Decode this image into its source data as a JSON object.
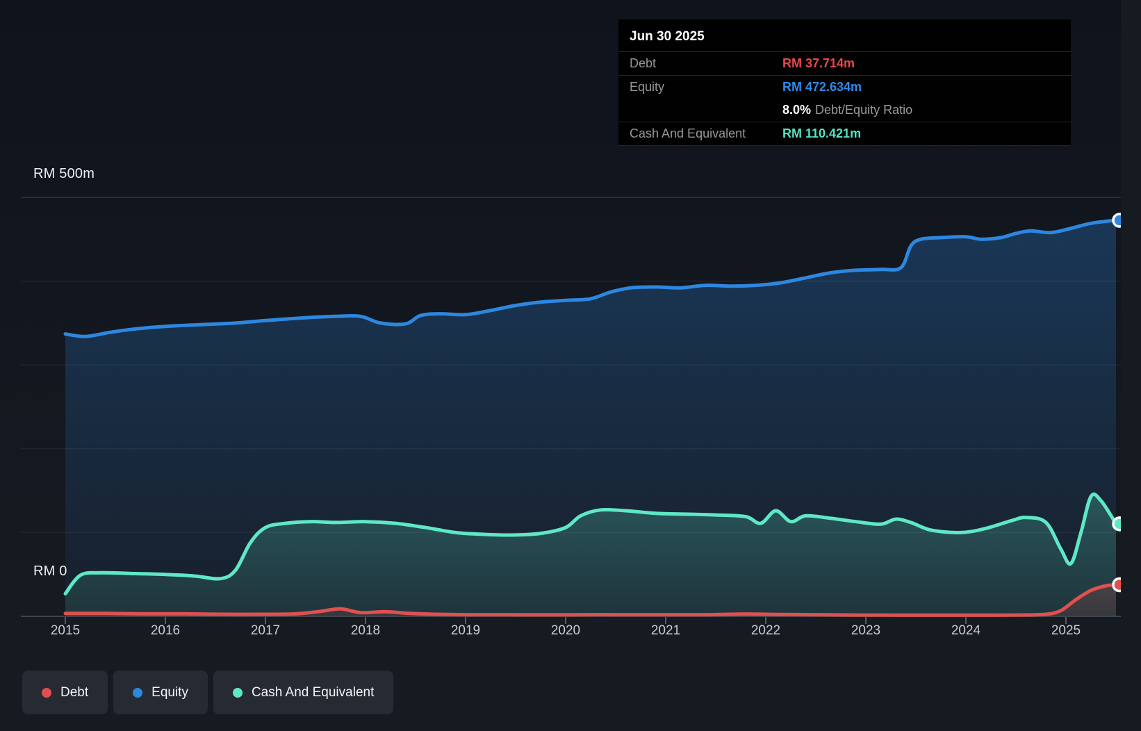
{
  "tooltip": {
    "title": "Jun 30 2025",
    "rows": {
      "debt": {
        "label": "Debt",
        "value": "RM 37.714m"
      },
      "equity": {
        "label": "Equity",
        "value": "RM 472.634m"
      },
      "ratio": {
        "value": "8.0%",
        "label": "Debt/Equity Ratio"
      },
      "cash": {
        "label": "Cash And Equivalent",
        "value": "RM 110.421m"
      }
    }
  },
  "y_axis": {
    "top_label": "RM 500m",
    "bottom_label": "RM 0"
  },
  "legend": {
    "items": [
      {
        "id": "debt",
        "label": "Debt",
        "color": "#e0504f"
      },
      {
        "id": "equity",
        "label": "Equity",
        "color": "#2d87e0"
      },
      {
        "id": "cash",
        "label": "Cash And Equivalent",
        "color": "#5fe8c5"
      }
    ]
  },
  "chart_data": {
    "type": "area",
    "unit": "RM millions",
    "ylim": [
      0,
      500
    ],
    "y_gridlines_m": [
      100,
      200,
      300,
      400,
      500
    ],
    "x_ticks": [
      2015,
      2016,
      2017,
      2018,
      2019,
      2020,
      2021,
      2022,
      2023,
      2024,
      2025
    ],
    "x_end": 2025.5,
    "legend_position": "bottom-left",
    "series": [
      {
        "name": "Equity",
        "color": "#2d87e0",
        "points": [
          [
            2015.0,
            337
          ],
          [
            2015.2,
            334
          ],
          [
            2015.45,
            339
          ],
          [
            2015.7,
            343
          ],
          [
            2016.0,
            346
          ],
          [
            2016.35,
            348
          ],
          [
            2016.7,
            350
          ],
          [
            2017.0,
            353
          ],
          [
            2017.35,
            356
          ],
          [
            2017.7,
            358
          ],
          [
            2017.95,
            358
          ],
          [
            2018.15,
            350
          ],
          [
            2018.4,
            349
          ],
          [
            2018.55,
            359
          ],
          [
            2018.75,
            361
          ],
          [
            2019.0,
            360
          ],
          [
            2019.25,
            365
          ],
          [
            2019.5,
            371
          ],
          [
            2019.75,
            375
          ],
          [
            2020.0,
            377
          ],
          [
            2020.25,
            379
          ],
          [
            2020.45,
            387
          ],
          [
            2020.65,
            392
          ],
          [
            2020.9,
            393
          ],
          [
            2021.15,
            392
          ],
          [
            2021.4,
            395
          ],
          [
            2021.65,
            394
          ],
          [
            2021.9,
            395
          ],
          [
            2022.15,
            398
          ],
          [
            2022.4,
            404
          ],
          [
            2022.65,
            410
          ],
          [
            2022.9,
            413
          ],
          [
            2023.15,
            414
          ],
          [
            2023.35,
            416
          ],
          [
            2023.45,
            442
          ],
          [
            2023.55,
            450
          ],
          [
            2023.75,
            452
          ],
          [
            2024.0,
            453
          ],
          [
            2024.15,
            450
          ],
          [
            2024.35,
            452
          ],
          [
            2024.5,
            457
          ],
          [
            2024.65,
            460
          ],
          [
            2024.85,
            458
          ],
          [
            2025.05,
            463
          ],
          [
            2025.25,
            469
          ],
          [
            2025.5,
            472.634
          ]
        ]
      },
      {
        "name": "Cash And Equivalent",
        "color": "#5fe8c5",
        "points": [
          [
            2015.0,
            27
          ],
          [
            2015.15,
            49
          ],
          [
            2015.35,
            52
          ],
          [
            2015.7,
            51
          ],
          [
            2016.0,
            50
          ],
          [
            2016.3,
            48
          ],
          [
            2016.55,
            45
          ],
          [
            2016.7,
            55
          ],
          [
            2016.85,
            88
          ],
          [
            2017.0,
            106
          ],
          [
            2017.2,
            111
          ],
          [
            2017.45,
            113
          ],
          [
            2017.7,
            112
          ],
          [
            2018.0,
            113
          ],
          [
            2018.3,
            111
          ],
          [
            2018.6,
            106
          ],
          [
            2018.9,
            100
          ],
          [
            2019.15,
            98
          ],
          [
            2019.45,
            97
          ],
          [
            2019.75,
            99
          ],
          [
            2020.0,
            106
          ],
          [
            2020.15,
            120
          ],
          [
            2020.35,
            127
          ],
          [
            2020.6,
            126
          ],
          [
            2020.9,
            123
          ],
          [
            2021.2,
            122
          ],
          [
            2021.5,
            121
          ],
          [
            2021.8,
            119
          ],
          [
            2021.95,
            111
          ],
          [
            2022.1,
            126
          ],
          [
            2022.25,
            113
          ],
          [
            2022.4,
            120
          ],
          [
            2022.65,
            117
          ],
          [
            2022.9,
            113
          ],
          [
            2023.15,
            110
          ],
          [
            2023.3,
            116
          ],
          [
            2023.45,
            112
          ],
          [
            2023.65,
            103
          ],
          [
            2023.95,
            100
          ],
          [
            2024.2,
            105
          ],
          [
            2024.45,
            114
          ],
          [
            2024.6,
            118
          ],
          [
            2024.8,
            112
          ],
          [
            2024.95,
            80
          ],
          [
            2025.05,
            63
          ],
          [
            2025.15,
            100
          ],
          [
            2025.25,
            143
          ],
          [
            2025.35,
            138
          ],
          [
            2025.5,
            110.421
          ]
        ]
      },
      {
        "name": "Debt",
        "color": "#e0504f",
        "points": [
          [
            2015.0,
            3.5
          ],
          [
            2015.4,
            3.5
          ],
          [
            2015.8,
            3
          ],
          [
            2016.2,
            3
          ],
          [
            2016.6,
            2.5
          ],
          [
            2017.0,
            2.5
          ],
          [
            2017.3,
            3
          ],
          [
            2017.55,
            6
          ],
          [
            2017.75,
            9
          ],
          [
            2017.95,
            4.5
          ],
          [
            2018.2,
            5.5
          ],
          [
            2018.45,
            3.5
          ],
          [
            2018.7,
            2.5
          ],
          [
            2019.0,
            2
          ],
          [
            2019.4,
            2
          ],
          [
            2019.8,
            1.8
          ],
          [
            2020.2,
            2
          ],
          [
            2020.6,
            2
          ],
          [
            2021.0,
            2
          ],
          [
            2021.4,
            2
          ],
          [
            2021.8,
            2.8
          ],
          [
            2022.1,
            2.3
          ],
          [
            2022.5,
            2
          ],
          [
            2022.9,
            1.6
          ],
          [
            2023.3,
            1.5
          ],
          [
            2023.7,
            1.5
          ],
          [
            2024.1,
            1.5
          ],
          [
            2024.5,
            1.6
          ],
          [
            2024.8,
            2.5
          ],
          [
            2024.95,
            7
          ],
          [
            2025.1,
            20
          ],
          [
            2025.25,
            31
          ],
          [
            2025.4,
            36.5
          ],
          [
            2025.5,
            37.714
          ]
        ]
      }
    ]
  }
}
